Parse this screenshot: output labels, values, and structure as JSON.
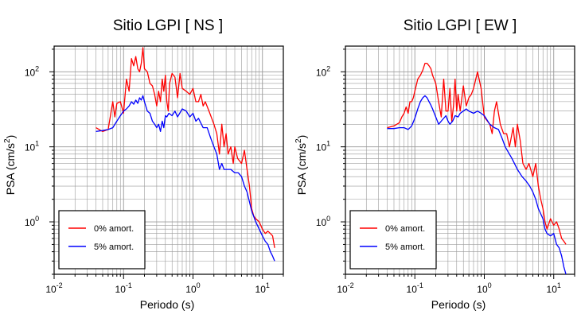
{
  "chart_data": [
    {
      "type": "line",
      "title": "Sitio LGPI [ NS ]",
      "xlabel": "Periodo (s)",
      "ylabel_main": "PSA (cm/s",
      "ylabel_sup": "2",
      "ylabel_tail": ")",
      "xscale": "log",
      "yscale": "log",
      "xlim": [
        0.01,
        20
      ],
      "ylim": [
        0.2,
        220
      ],
      "grid": true,
      "legend_position": "bottom-left",
      "x_ticks": [
        {
          "base": "10",
          "exp": "-2"
        },
        {
          "base": "10",
          "exp": "-1"
        },
        {
          "base": "10",
          "exp": "0"
        },
        {
          "base": "10",
          "exp": "1"
        }
      ],
      "y_ticks": [
        {
          "base": "10",
          "exp": "0"
        },
        {
          "base": "10",
          "exp": "1"
        },
        {
          "base": "10",
          "exp": "2"
        }
      ],
      "series": [
        {
          "name": "0% amort.",
          "color": "#ff0000",
          "points": [
            [
              0.04,
              18
            ],
            [
              0.05,
              16
            ],
            [
              0.06,
              17
            ],
            [
              0.07,
              40
            ],
            [
              0.075,
              25
            ],
            [
              0.08,
              38
            ],
            [
              0.09,
              40
            ],
            [
              0.1,
              28
            ],
            [
              0.11,
              80
            ],
            [
              0.12,
              55
            ],
            [
              0.13,
              150
            ],
            [
              0.14,
              120
            ],
            [
              0.15,
              160
            ],
            [
              0.16,
              110
            ],
            [
              0.17,
              100
            ],
            [
              0.18,
              130
            ],
            [
              0.19,
              210
            ],
            [
              0.2,
              110
            ],
            [
              0.22,
              100
            ],
            [
              0.24,
              70
            ],
            [
              0.26,
              65
            ],
            [
              0.28,
              50
            ],
            [
              0.3,
              35
            ],
            [
              0.32,
              55
            ],
            [
              0.34,
              40
            ],
            [
              0.36,
              80
            ],
            [
              0.38,
              55
            ],
            [
              0.4,
              90
            ],
            [
              0.42,
              40
            ],
            [
              0.44,
              30
            ],
            [
              0.46,
              70
            ],
            [
              0.5,
              95
            ],
            [
              0.55,
              85
            ],
            [
              0.6,
              45
            ],
            [
              0.65,
              95
            ],
            [
              0.7,
              60
            ],
            [
              0.8,
              55
            ],
            [
              0.9,
              50
            ],
            [
              1.0,
              60
            ],
            [
              1.1,
              40
            ],
            [
              1.2,
              40
            ],
            [
              1.3,
              50
            ],
            [
              1.4,
              35
            ],
            [
              1.5,
              40
            ],
            [
              1.7,
              30
            ],
            [
              2.0,
              20
            ],
            [
              2.2,
              15
            ],
            [
              2.4,
              8
            ],
            [
              2.6,
              20
            ],
            [
              2.8,
              10
            ],
            [
              3.0,
              15
            ],
            [
              3.2,
              8
            ],
            [
              3.5,
              10
            ],
            [
              3.8,
              6
            ],
            [
              4.0,
              10
            ],
            [
              4.4,
              7
            ],
            [
              5.0,
              6
            ],
            [
              5.5,
              9
            ],
            [
              6.0,
              5
            ],
            [
              6.5,
              3
            ],
            [
              7.0,
              1.5
            ],
            [
              7.5,
              1.2
            ],
            [
              8.0,
              1.1
            ],
            [
              9.0,
              1.0
            ],
            [
              10,
              0.8
            ],
            [
              11,
              0.7
            ],
            [
              12,
              0.75
            ],
            [
              13,
              0.7
            ],
            [
              14,
              0.65
            ],
            [
              15,
              0.45
            ]
          ]
        },
        {
          "name": "5% amort.",
          "color": "#0000ff",
          "points": [
            [
              0.04,
              16
            ],
            [
              0.05,
              16.5
            ],
            [
              0.06,
              17
            ],
            [
              0.07,
              18
            ],
            [
              0.08,
              22
            ],
            [
              0.09,
              26
            ],
            [
              0.1,
              30
            ],
            [
              0.11,
              32
            ],
            [
              0.12,
              35
            ],
            [
              0.13,
              40
            ],
            [
              0.14,
              37
            ],
            [
              0.15,
              42
            ],
            [
              0.16,
              38
            ],
            [
              0.17,
              45
            ],
            [
              0.18,
              42
            ],
            [
              0.19,
              48
            ],
            [
              0.2,
              40
            ],
            [
              0.22,
              30
            ],
            [
              0.24,
              28
            ],
            [
              0.26,
              22
            ],
            [
              0.28,
              20
            ],
            [
              0.3,
              18
            ],
            [
              0.32,
              20
            ],
            [
              0.34,
              16
            ],
            [
              0.36,
              22
            ],
            [
              0.38,
              18
            ],
            [
              0.4,
              26
            ],
            [
              0.42,
              25
            ],
            [
              0.45,
              28
            ],
            [
              0.5,
              26
            ],
            [
              0.55,
              30
            ],
            [
              0.6,
              25
            ],
            [
              0.7,
              32
            ],
            [
              0.8,
              30
            ],
            [
              0.9,
              25
            ],
            [
              1.0,
              28
            ],
            [
              1.1,
              22
            ],
            [
              1.2,
              24
            ],
            [
              1.4,
              18
            ],
            [
              1.6,
              18
            ],
            [
              1.8,
              13
            ],
            [
              2.0,
              10
            ],
            [
              2.2,
              8
            ],
            [
              2.4,
              5
            ],
            [
              2.6,
              6
            ],
            [
              2.8,
              5
            ],
            [
              3.0,
              5
            ],
            [
              3.5,
              5
            ],
            [
              4.0,
              4.5
            ],
            [
              4.5,
              4.5
            ],
            [
              5.0,
              4
            ],
            [
              5.5,
              3
            ],
            [
              6.0,
              2.5
            ],
            [
              7.0,
              1.4
            ],
            [
              8.0,
              1.0
            ],
            [
              9.0,
              0.8
            ],
            [
              10,
              0.65
            ],
            [
              11,
              0.55
            ],
            [
              12,
              0.5
            ],
            [
              13,
              0.4
            ],
            [
              14,
              0.35
            ],
            [
              15,
              0.3
            ]
          ]
        }
      ]
    },
    {
      "type": "line",
      "title": "Sitio LGPI [ EW ]",
      "xlabel": "Periodo (s)",
      "ylabel_main": "PSA (cm/s",
      "ylabel_sup": "2",
      "ylabel_tail": ")",
      "xscale": "log",
      "yscale": "log",
      "xlim": [
        0.01,
        20
      ],
      "ylim": [
        0.2,
        220
      ],
      "grid": true,
      "legend_position": "bottom-left",
      "x_ticks": [
        {
          "base": "10",
          "exp": "-2"
        },
        {
          "base": "10",
          "exp": "-1"
        },
        {
          "base": "10",
          "exp": "0"
        },
        {
          "base": "10",
          "exp": "1"
        }
      ],
      "y_ticks": [
        {
          "base": "10",
          "exp": "0"
        },
        {
          "base": "10",
          "exp": "1"
        },
        {
          "base": "10",
          "exp": "2"
        }
      ],
      "series": [
        {
          "name": "0% amort.",
          "color": "#ff0000",
          "points": [
            [
              0.04,
              18
            ],
            [
              0.05,
              19
            ],
            [
              0.06,
              21
            ],
            [
              0.065,
              25
            ],
            [
              0.07,
              28
            ],
            [
              0.075,
              34
            ],
            [
              0.08,
              28
            ],
            [
              0.085,
              40
            ],
            [
              0.09,
              40
            ],
            [
              0.095,
              45
            ],
            [
              0.1,
              55
            ],
            [
              0.11,
              80
            ],
            [
              0.12,
              90
            ],
            [
              0.13,
              105
            ],
            [
              0.14,
              130
            ],
            [
              0.15,
              130
            ],
            [
              0.16,
              120
            ],
            [
              0.17,
              110
            ],
            [
              0.18,
              90
            ],
            [
              0.2,
              70
            ],
            [
              0.22,
              40
            ],
            [
              0.24,
              25
            ],
            [
              0.26,
              80
            ],
            [
              0.28,
              30
            ],
            [
              0.3,
              30
            ],
            [
              0.32,
              60
            ],
            [
              0.34,
              22
            ],
            [
              0.36,
              35
            ],
            [
              0.38,
              80
            ],
            [
              0.4,
              30
            ],
            [
              0.42,
              50
            ],
            [
              0.45,
              30
            ],
            [
              0.5,
              65
            ],
            [
              0.55,
              35
            ],
            [
              0.6,
              45
            ],
            [
              0.65,
              50
            ],
            [
              0.7,
              60
            ],
            [
              0.8,
              100
            ],
            [
              0.9,
              60
            ],
            [
              1.0,
              25
            ],
            [
              1.2,
              20
            ],
            [
              1.3,
              15
            ],
            [
              1.4,
              30
            ],
            [
              1.5,
              40
            ],
            [
              1.7,
              20
            ],
            [
              1.9,
              15
            ],
            [
              2.1,
              15
            ],
            [
              2.3,
              10
            ],
            [
              2.6,
              18
            ],
            [
              2.8,
              10
            ],
            [
              3.0,
              20
            ],
            [
              3.3,
              12
            ],
            [
              3.6,
              6
            ],
            [
              4.0,
              5
            ],
            [
              4.4,
              6
            ],
            [
              5.0,
              4
            ],
            [
              5.5,
              6
            ],
            [
              6.0,
              3
            ],
            [
              6.5,
              2
            ],
            [
              7.0,
              1.5
            ],
            [
              7.5,
              1.0
            ],
            [
              8.0,
              0.8
            ],
            [
              9.0,
              1.1
            ],
            [
              10,
              0.9
            ],
            [
              11,
              1.0
            ],
            [
              12,
              0.8
            ],
            [
              13,
              0.6
            ],
            [
              14,
              0.55
            ],
            [
              15,
              0.5
            ]
          ]
        },
        {
          "name": "5% amort.",
          "color": "#0000ff",
          "points": [
            [
              0.04,
              17.5
            ],
            [
              0.05,
              17.5
            ],
            [
              0.06,
              18
            ],
            [
              0.07,
              18
            ],
            [
              0.08,
              17
            ],
            [
              0.09,
              19
            ],
            [
              0.1,
              24
            ],
            [
              0.11,
              32
            ],
            [
              0.12,
              40
            ],
            [
              0.13,
              45
            ],
            [
              0.14,
              48
            ],
            [
              0.15,
              45
            ],
            [
              0.16,
              40
            ],
            [
              0.17,
              36
            ],
            [
              0.18,
              32
            ],
            [
              0.2,
              25
            ],
            [
              0.22,
              20
            ],
            [
              0.25,
              23
            ],
            [
              0.28,
              26
            ],
            [
              0.3,
              22
            ],
            [
              0.32,
              20
            ],
            [
              0.35,
              22
            ],
            [
              0.38,
              26
            ],
            [
              0.42,
              25
            ],
            [
              0.45,
              28
            ],
            [
              0.5,
              30
            ],
            [
              0.55,
              32
            ],
            [
              0.6,
              30
            ],
            [
              0.7,
              28
            ],
            [
              0.8,
              30
            ],
            [
              0.9,
              28
            ],
            [
              1.0,
              26
            ],
            [
              1.2,
              20
            ],
            [
              1.4,
              18
            ],
            [
              1.6,
              17
            ],
            [
              1.8,
              13
            ],
            [
              2.0,
              10
            ],
            [
              2.5,
              7
            ],
            [
              3.0,
              5
            ],
            [
              3.5,
              4
            ],
            [
              4.0,
              3.5
            ],
            [
              4.5,
              3
            ],
            [
              5.0,
              2.5
            ],
            [
              5.5,
              2
            ],
            [
              6.0,
              1.5
            ],
            [
              7.0,
              1.1
            ],
            [
              7.5,
              0.8
            ],
            [
              8.0,
              0.7
            ],
            [
              9.0,
              0.65
            ],
            [
              10,
              0.7
            ],
            [
              11,
              0.5
            ],
            [
              12,
              0.45
            ],
            [
              13,
              0.35
            ],
            [
              14,
              0.25
            ],
            [
              15,
              0.2
            ]
          ]
        }
      ]
    }
  ]
}
